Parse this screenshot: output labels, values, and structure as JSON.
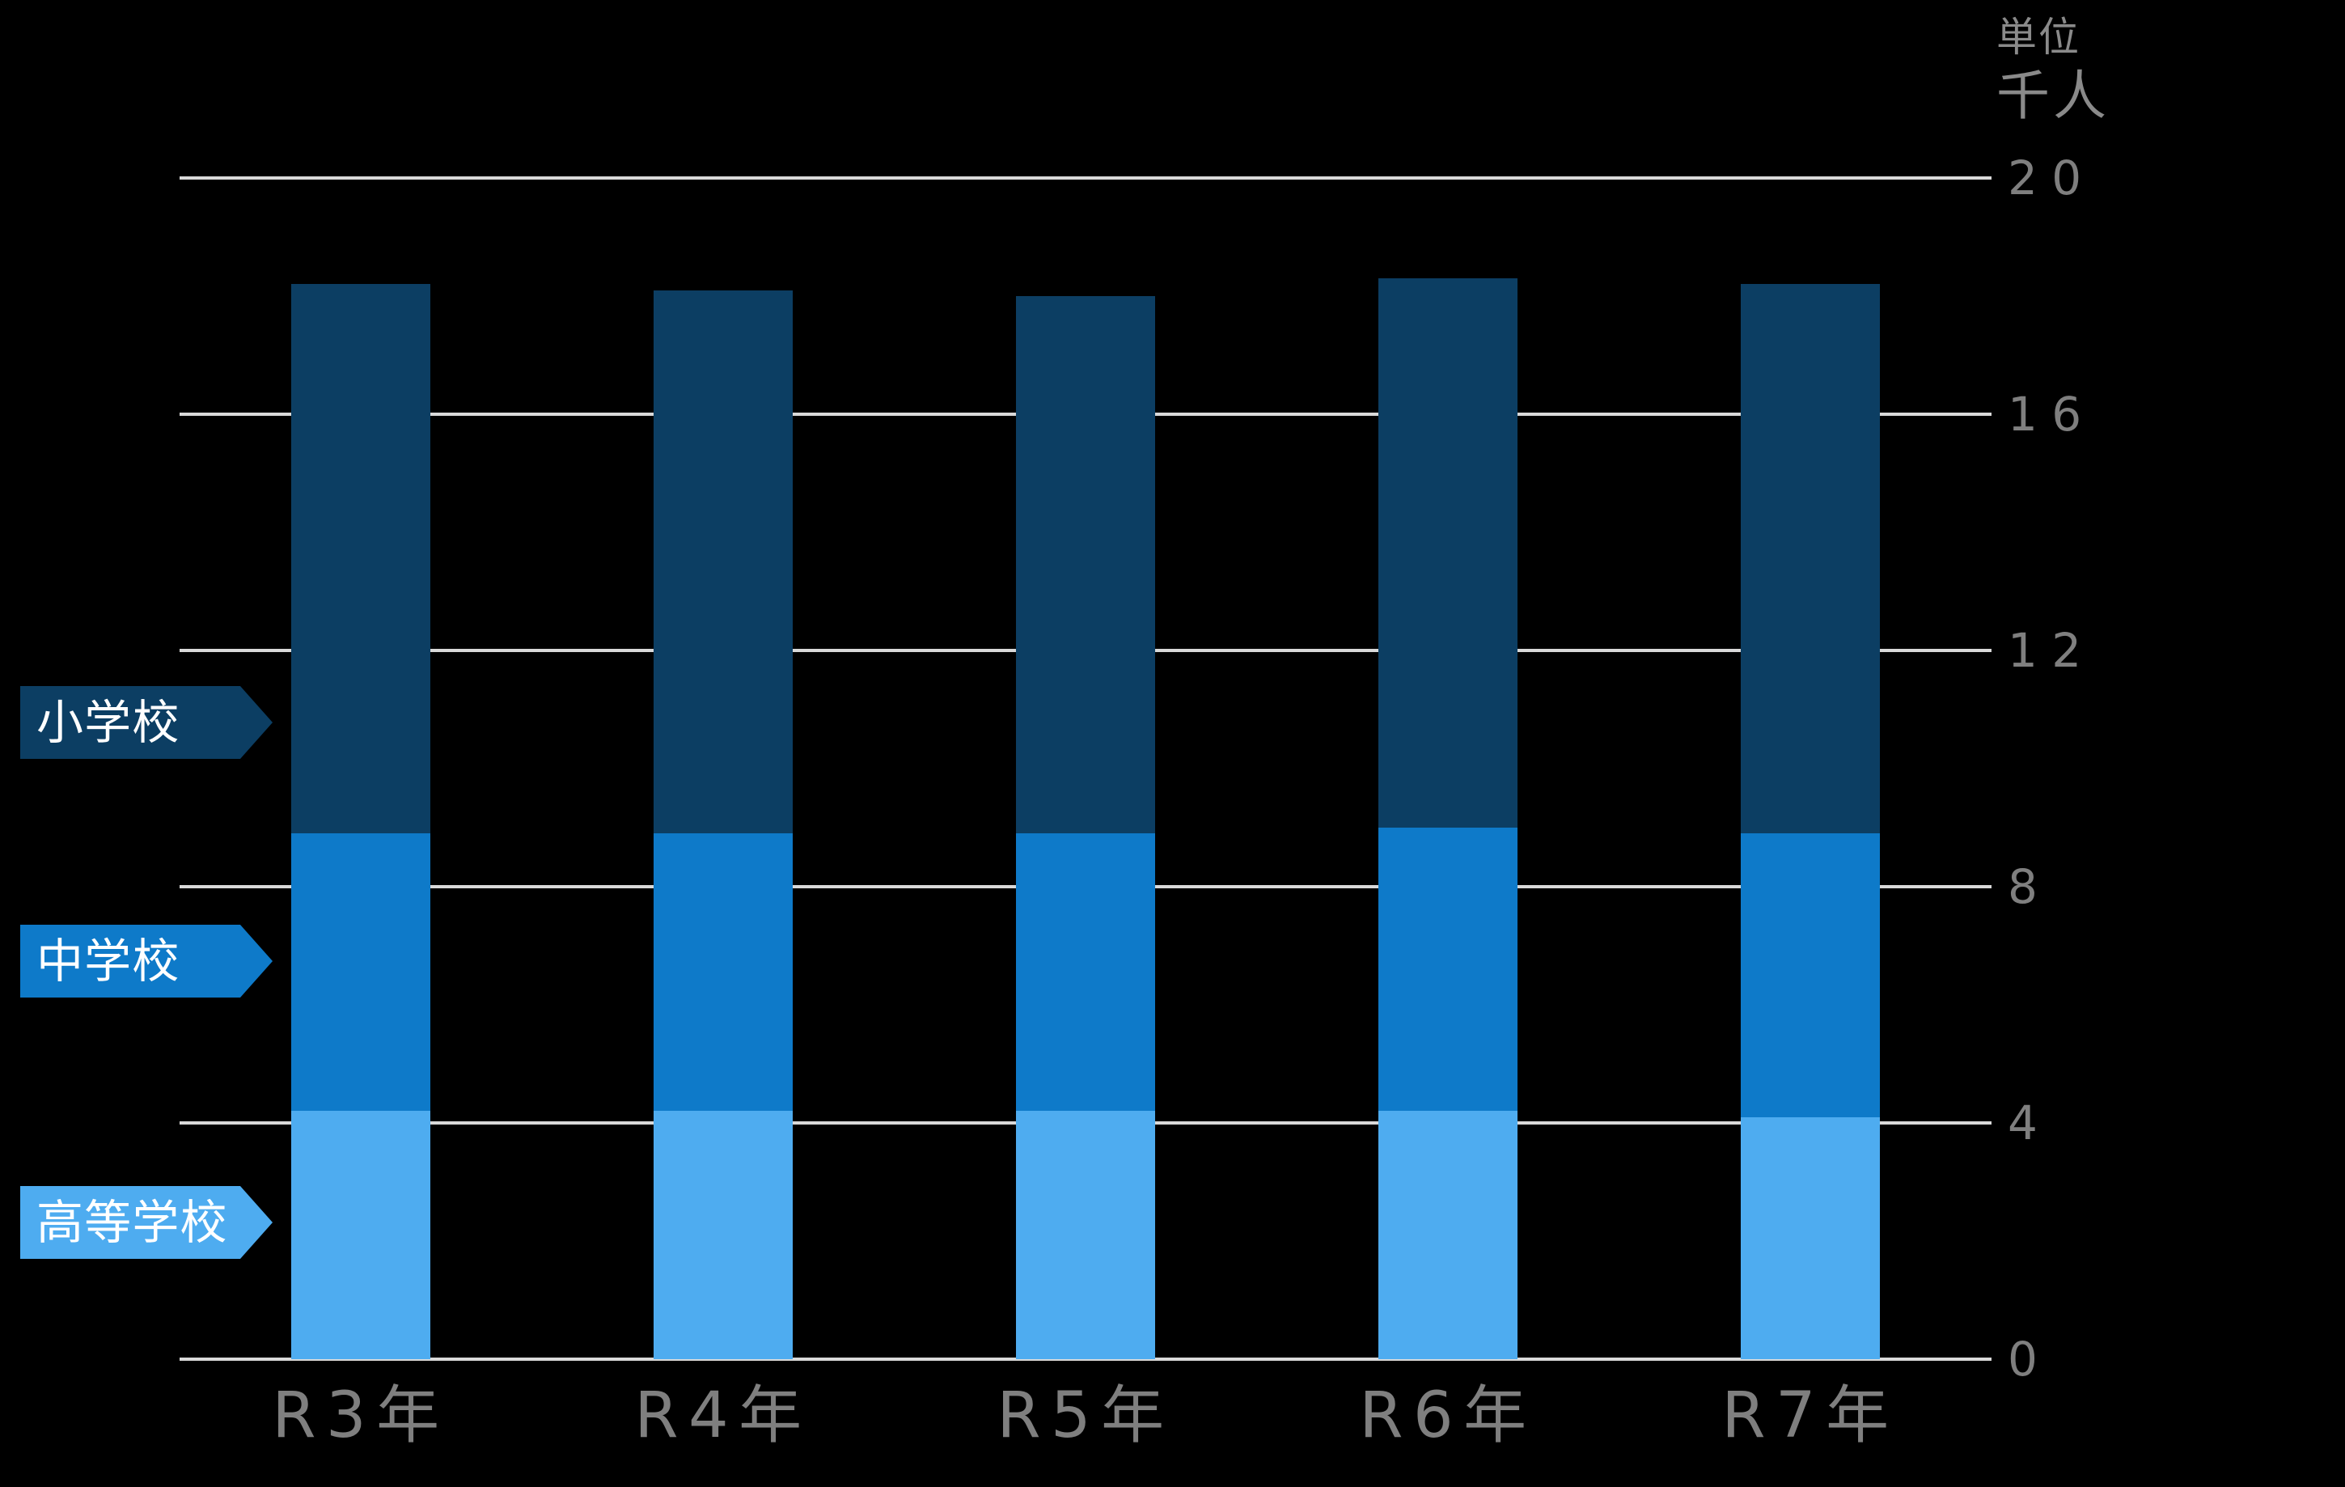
{
  "unit_label": {
    "line1": "単位",
    "line2": "千人"
  },
  "colors": {
    "background": "#000000",
    "grid": "#D9D9D9",
    "axis_text": "#7F7F7F",
    "unit_text": "#8A8A8A",
    "legend_text": "#FFFFFF",
    "elementary": "#0C3E63",
    "junior_high": "#0E7AC9",
    "high_school": "#4EACF0"
  },
  "legend": [
    {
      "label": "小学校",
      "color_key": "elementary"
    },
    {
      "label": "中学校",
      "color_key": "junior_high"
    },
    {
      "label": "高等学校",
      "color_key": "high_school"
    }
  ],
  "chart_data": {
    "type": "bar",
    "stacked": true,
    "title": "",
    "unit": "千人",
    "categories": [
      "R3年",
      "R4年",
      "R5年",
      "R6年",
      "R7年"
    ],
    "series": [
      {
        "name": "高等学校",
        "color_key": "high_school",
        "values": [
          4.2,
          4.2,
          4.2,
          4.2,
          4.1
        ]
      },
      {
        "name": "中学校",
        "color_key": "junior_high",
        "values": [
          4.7,
          4.7,
          4.7,
          4.8,
          4.8
        ]
      },
      {
        "name": "小学校",
        "color_key": "elementary",
        "values": [
          9.3,
          9.2,
          9.1,
          9.3,
          9.3
        ]
      }
    ],
    "totals": [
      18.2,
      18.1,
      18.0,
      18.3,
      18.2
    ],
    "ylim": [
      0,
      20
    ],
    "yticks": [
      0,
      4,
      8,
      12,
      16,
      20
    ],
    "grid": true,
    "legend_position": "left"
  }
}
